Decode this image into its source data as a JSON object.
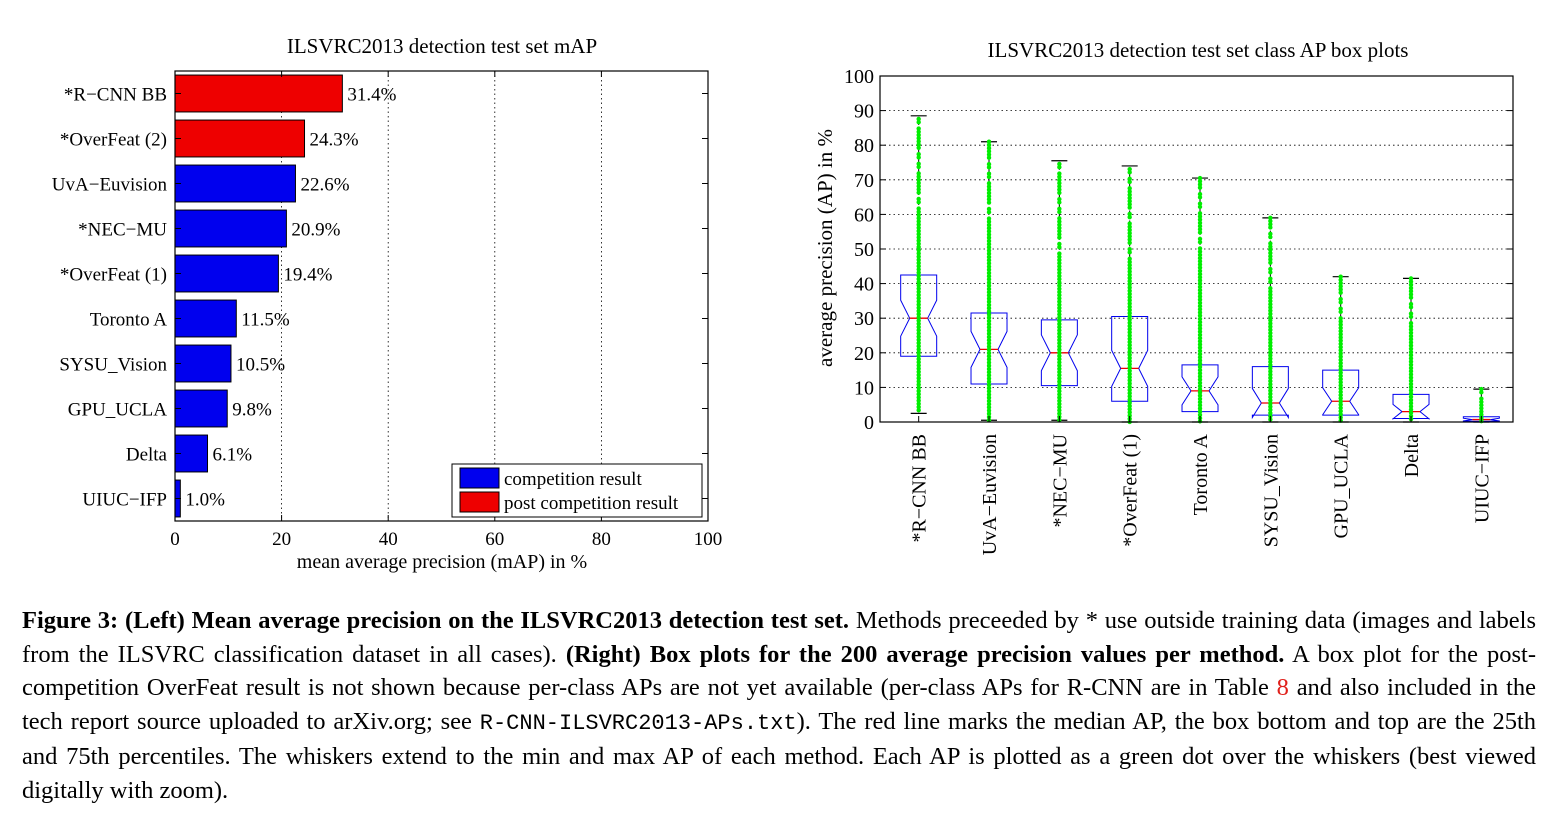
{
  "chart_data": [
    {
      "type": "bar",
      "orientation": "horizontal",
      "title": "ILSVRC2013 detection test set mAP",
      "xlabel": "mean average precision (mAP) in %",
      "xlim": [
        0,
        100
      ],
      "xticks": [
        "0",
        "20",
        "40",
        "60",
        "80",
        "100"
      ],
      "grid": "vertical dotted",
      "categories": [
        "*R−CNN BB",
        "*OverFeat (2)",
        "UvA−Euvision",
        "*NEC−MU",
        "*OverFeat (1)",
        "Toronto A",
        "SYSU_Vision",
        "GPU_UCLA",
        "Delta",
        "UIUC−IFP"
      ],
      "values": [
        31.4,
        24.3,
        22.6,
        20.9,
        19.4,
        11.5,
        10.5,
        9.8,
        6.1,
        1.0
      ],
      "value_labels": [
        "31.4%",
        "24.3%",
        "22.6%",
        "20.9%",
        "19.4%",
        "11.5%",
        "10.5%",
        "9.8%",
        "6.1%",
        "1.0%"
      ],
      "groups": [
        "post",
        "post",
        "competition",
        "competition",
        "competition",
        "competition",
        "competition",
        "competition",
        "competition",
        "competition"
      ],
      "legend": {
        "placement": "bottom-right",
        "entries": [
          {
            "key": "competition",
            "label": "competition result",
            "color": "#0000ee"
          },
          {
            "key": "post",
            "label": "post competition result",
            "color": "#ee0000"
          }
        ]
      }
    },
    {
      "type": "boxplot",
      "title": "ILSVRC2013 detection test set class AP box plots",
      "ylabel": "average precision (AP) in %",
      "ylim": [
        0,
        100
      ],
      "yticks": [
        "0",
        "10",
        "20",
        "30",
        "40",
        "50",
        "60",
        "70",
        "80",
        "90",
        "100"
      ],
      "grid": "horizontal dotted",
      "categories": [
        "*R−CNN BB",
        "UvA−Euvision",
        "*NEC−MU",
        "*OverFeat (1)",
        "Toronto A",
        "SYSU_Vision",
        "GPU_UCLA",
        "Delta",
        "UIUC−IFP"
      ],
      "boxes": [
        {
          "min": 2.5,
          "q1": 19,
          "median": 30,
          "q3": 42.5,
          "max": 88.5
        },
        {
          "min": 0.5,
          "q1": 11,
          "median": 21,
          "q3": 31.5,
          "max": 81
        },
        {
          "min": 0.5,
          "q1": 10.5,
          "median": 20,
          "q3": 29.5,
          "max": 75.5
        },
        {
          "min": 0,
          "q1": 6,
          "median": 15.5,
          "q3": 30.5,
          "max": 74
        },
        {
          "min": 0,
          "q1": 3,
          "median": 9,
          "q3": 16.5,
          "max": 70.5
        },
        {
          "min": 0,
          "q1": 2,
          "median": 5.5,
          "q3": 16,
          "max": 59
        },
        {
          "min": 0,
          "q1": 2,
          "median": 6,
          "q3": 15,
          "max": 42
        },
        {
          "min": 0,
          "q1": 1,
          "median": 3,
          "q3": 8,
          "max": 41.5
        },
        {
          "min": 0,
          "q1": 0.2,
          "median": 0.7,
          "q3": 1.5,
          "max": 9.5
        }
      ],
      "colors": {
        "box": "#0000ee",
        "median": "#ee0000",
        "whisker": "#000000",
        "points": "#00ee00"
      }
    }
  ],
  "caption": {
    "figure_label": "Figure 3:",
    "left_heading": "(Left) Mean average precision on the ILSVRC2013 detection test set.",
    "text_1": "Methods preceeded by * use outside training data (images and labels from the ILSVRC classification dataset in all cases).",
    "right_heading": "(Right) Box plots for the 200 average precision values per method.",
    "text_2": "A box plot for the post-competition OverFeat result is not shown because per-class APs are not yet available (per-class APs for R-CNN are in Table",
    "table_ref": "8",
    "text_3": "and also included in the tech report source uploaded to arXiv.org; see",
    "filename": "R-CNN-ILSVRC2013-APs.txt",
    "text_4": "). The red line marks the median AP, the box bottom and top are the 25th and 75th percentiles. The whiskers extend to the min and max AP of each method. Each AP is plotted as a green dot over the whiskers (best viewed digitally with zoom)."
  }
}
